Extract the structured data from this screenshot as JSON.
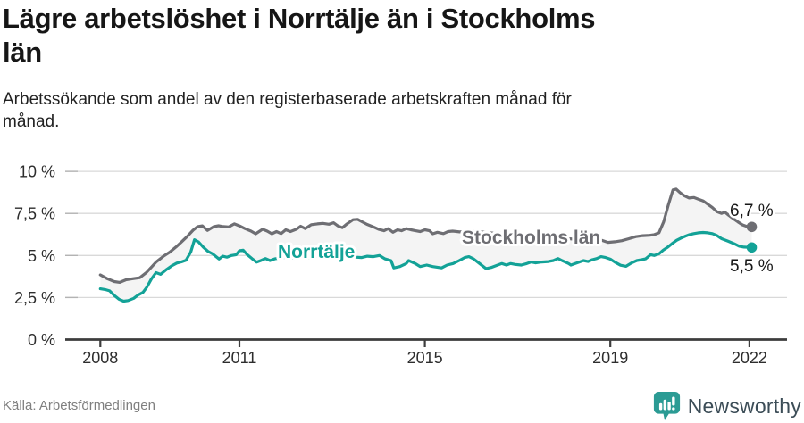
{
  "header": {
    "title_lines": [
      "Lägre arbetslöshet i Norrtälje än i Stockholms",
      "län"
    ],
    "subtitle_lines": [
      "Arbetssökande som andel av den registerbaserade arbetskraften månad för",
      "månad."
    ]
  },
  "footer": {
    "source": "Källa: Arbetsförmedlingen",
    "brand": "Newsworthy",
    "brand_icon": "bar-chart-speech-bubble-icon",
    "brand_icon_color": "#2b9b94",
    "brand_text_color": "#3c4d57"
  },
  "colors": {
    "axis": "#3d3d3d",
    "grid": "#d9d9d9",
    "grid_stub": "#b3b3b3",
    "tick_label": "#2d2d2d",
    "band_fill": "#f4f4f4",
    "end_label": "#161616",
    "halo": "#ffffff"
  },
  "chart_data": {
    "type": "line",
    "title": "Lägre arbetslöshet i Norrtälje än i Stockholms län",
    "subtitle": "Arbetssökande som andel av den registerbaserade arbetskraften månad för månad.",
    "xlabel": "",
    "ylabel": "",
    "grid": true,
    "legend_position": "inline-labels",
    "x_axis": {
      "range": [
        2007.25,
        2022.8
      ],
      "ticks": [
        2008,
        2011,
        2015,
        2019,
        2022
      ],
      "tick_labels": [
        "2008",
        "2011",
        "2015",
        "2019",
        "2022"
      ]
    },
    "y_axis": {
      "range": [
        0,
        10
      ],
      "ticks": [
        0,
        2.5,
        5,
        7.5,
        10
      ],
      "tick_labels": [
        "0 %",
        "2,5 %",
        "5 %",
        "7,5 %",
        "10 %"
      ]
    },
    "band_fill_between_series": true,
    "series": [
      {
        "name": "Stockholms län",
        "color": "#6e6e73",
        "end_value": 6.7,
        "end_label": "6,7 %",
        "points": [
          [
            2008.0,
            3.85
          ],
          [
            2008.15,
            3.62
          ],
          [
            2008.3,
            3.45
          ],
          [
            2008.42,
            3.4
          ],
          [
            2008.55,
            3.55
          ],
          [
            2008.7,
            3.62
          ],
          [
            2008.85,
            3.68
          ],
          [
            2009.0,
            4.0
          ],
          [
            2009.2,
            4.6
          ],
          [
            2009.36,
            4.95
          ],
          [
            2009.5,
            5.2
          ],
          [
            2009.63,
            5.5
          ],
          [
            2009.75,
            5.8
          ],
          [
            2009.87,
            6.12
          ],
          [
            2010.0,
            6.5
          ],
          [
            2010.1,
            6.72
          ],
          [
            2010.2,
            6.76
          ],
          [
            2010.31,
            6.49
          ],
          [
            2010.45,
            6.72
          ],
          [
            2010.55,
            6.77
          ],
          [
            2010.65,
            6.72
          ],
          [
            2010.77,
            6.7
          ],
          [
            2010.89,
            6.88
          ],
          [
            2011.0,
            6.76
          ],
          [
            2011.12,
            6.6
          ],
          [
            2011.25,
            6.45
          ],
          [
            2011.35,
            6.29
          ],
          [
            2011.5,
            6.56
          ],
          [
            2011.6,
            6.45
          ],
          [
            2011.7,
            6.29
          ],
          [
            2011.8,
            6.42
          ],
          [
            2011.9,
            6.3
          ],
          [
            2012.0,
            6.53
          ],
          [
            2012.1,
            6.42
          ],
          [
            2012.23,
            6.56
          ],
          [
            2012.32,
            6.74
          ],
          [
            2012.42,
            6.6
          ],
          [
            2012.55,
            6.83
          ],
          [
            2012.68,
            6.88
          ],
          [
            2012.8,
            6.91
          ],
          [
            2012.93,
            6.86
          ],
          [
            2013.03,
            6.95
          ],
          [
            2013.12,
            6.77
          ],
          [
            2013.22,
            6.65
          ],
          [
            2013.32,
            6.88
          ],
          [
            2013.45,
            7.13
          ],
          [
            2013.55,
            7.15
          ],
          [
            2013.65,
            7.0
          ],
          [
            2013.75,
            6.85
          ],
          [
            2013.89,
            6.7
          ],
          [
            2014.0,
            6.56
          ],
          [
            2014.12,
            6.47
          ],
          [
            2014.21,
            6.6
          ],
          [
            2014.31,
            6.38
          ],
          [
            2014.41,
            6.53
          ],
          [
            2014.5,
            6.47
          ],
          [
            2014.6,
            6.6
          ],
          [
            2014.7,
            6.53
          ],
          [
            2014.8,
            6.47
          ],
          [
            2014.9,
            6.42
          ],
          [
            2015.0,
            6.53
          ],
          [
            2015.1,
            6.47
          ],
          [
            2015.17,
            6.29
          ],
          [
            2015.27,
            6.38
          ],
          [
            2015.4,
            6.3
          ],
          [
            2015.5,
            6.42
          ],
          [
            2015.6,
            6.45
          ],
          [
            2015.75,
            6.4
          ],
          [
            2015.9,
            6.43
          ],
          [
            2016.1,
            6.44
          ],
          [
            2016.3,
            6.38
          ],
          [
            2016.5,
            6.32
          ],
          [
            2016.7,
            6.35
          ],
          [
            2016.9,
            6.25
          ],
          [
            2017.1,
            6.2
          ],
          [
            2017.3,
            6.22
          ],
          [
            2017.5,
            6.12
          ],
          [
            2017.7,
            6.08
          ],
          [
            2017.9,
            6.1
          ],
          [
            2018.1,
            6.0
          ],
          [
            2018.3,
            5.95
          ],
          [
            2018.5,
            5.9
          ],
          [
            2018.65,
            5.95
          ],
          [
            2018.8,
            5.92
          ],
          [
            2018.95,
            5.78
          ],
          [
            2019.1,
            5.82
          ],
          [
            2019.25,
            5.88
          ],
          [
            2019.4,
            6.0
          ],
          [
            2019.55,
            6.12
          ],
          [
            2019.7,
            6.18
          ],
          [
            2019.85,
            6.2
          ],
          [
            2019.95,
            6.24
          ],
          [
            2020.05,
            6.35
          ],
          [
            2020.15,
            7.0
          ],
          [
            2020.25,
            8.0
          ],
          [
            2020.35,
            8.9
          ],
          [
            2020.42,
            8.95
          ],
          [
            2020.5,
            8.75
          ],
          [
            2020.6,
            8.55
          ],
          [
            2020.7,
            8.42
          ],
          [
            2020.8,
            8.45
          ],
          [
            2020.9,
            8.35
          ],
          [
            2021.0,
            8.25
          ],
          [
            2021.1,
            8.05
          ],
          [
            2021.2,
            7.85
          ],
          [
            2021.3,
            7.6
          ],
          [
            2021.4,
            7.5
          ],
          [
            2021.47,
            7.58
          ],
          [
            2021.55,
            7.4
          ],
          [
            2021.65,
            7.2
          ],
          [
            2021.75,
            7.0
          ],
          [
            2021.85,
            6.82
          ],
          [
            2021.95,
            6.72
          ],
          [
            2022.05,
            6.7
          ]
        ]
      },
      {
        "name": "Norrtälje",
        "color": "#13a297",
        "end_value": 5.5,
        "end_label": "5,5 %",
        "points": [
          [
            2008.0,
            3.02
          ],
          [
            2008.1,
            2.98
          ],
          [
            2008.2,
            2.9
          ],
          [
            2008.3,
            2.62
          ],
          [
            2008.4,
            2.4
          ],
          [
            2008.5,
            2.28
          ],
          [
            2008.6,
            2.32
          ],
          [
            2008.72,
            2.45
          ],
          [
            2008.82,
            2.66
          ],
          [
            2008.92,
            2.8
          ],
          [
            2009.0,
            3.1
          ],
          [
            2009.1,
            3.6
          ],
          [
            2009.2,
            3.98
          ],
          [
            2009.3,
            3.88
          ],
          [
            2009.43,
            4.17
          ],
          [
            2009.55,
            4.4
          ],
          [
            2009.65,
            4.55
          ],
          [
            2009.75,
            4.62
          ],
          [
            2009.85,
            4.72
          ],
          [
            2009.95,
            5.2
          ],
          [
            2010.03,
            5.94
          ],
          [
            2010.12,
            5.8
          ],
          [
            2010.22,
            5.5
          ],
          [
            2010.32,
            5.25
          ],
          [
            2010.42,
            5.1
          ],
          [
            2010.5,
            4.92
          ],
          [
            2010.56,
            4.79
          ],
          [
            2010.64,
            4.96
          ],
          [
            2010.73,
            4.9
          ],
          [
            2010.83,
            5.0
          ],
          [
            2010.93,
            5.05
          ],
          [
            2011.0,
            5.28
          ],
          [
            2011.08,
            5.32
          ],
          [
            2011.17,
            5.05
          ],
          [
            2011.27,
            4.82
          ],
          [
            2011.37,
            4.6
          ],
          [
            2011.46,
            4.7
          ],
          [
            2011.56,
            4.82
          ],
          [
            2011.66,
            4.7
          ],
          [
            2011.76,
            4.8
          ],
          [
            2011.9,
            4.86
          ],
          [
            2012.05,
            4.9
          ],
          [
            2012.2,
            4.82
          ],
          [
            2012.35,
            4.92
          ],
          [
            2012.5,
            4.85
          ],
          [
            2012.65,
            4.95
          ],
          [
            2012.8,
            4.88
          ],
          [
            2012.95,
            4.98
          ],
          [
            2013.1,
            4.9
          ],
          [
            2013.25,
            4.85
          ],
          [
            2013.4,
            4.92
          ],
          [
            2013.64,
            4.88
          ],
          [
            2013.76,
            4.96
          ],
          [
            2013.89,
            4.93
          ],
          [
            2014.02,
            5.0
          ],
          [
            2014.14,
            4.8
          ],
          [
            2014.27,
            4.7
          ],
          [
            2014.33,
            4.26
          ],
          [
            2014.46,
            4.34
          ],
          [
            2014.6,
            4.52
          ],
          [
            2014.65,
            4.7
          ],
          [
            2014.79,
            4.52
          ],
          [
            2014.9,
            4.34
          ],
          [
            2015.04,
            4.43
          ],
          [
            2015.17,
            4.34
          ],
          [
            2015.36,
            4.26
          ],
          [
            2015.48,
            4.43
          ],
          [
            2015.61,
            4.52
          ],
          [
            2015.74,
            4.7
          ],
          [
            2015.86,
            4.88
          ],
          [
            2015.95,
            4.93
          ],
          [
            2016.05,
            4.8
          ],
          [
            2016.18,
            4.52
          ],
          [
            2016.32,
            4.22
          ],
          [
            2016.43,
            4.29
          ],
          [
            2016.57,
            4.43
          ],
          [
            2016.66,
            4.52
          ],
          [
            2016.76,
            4.43
          ],
          [
            2016.85,
            4.52
          ],
          [
            2016.95,
            4.47
          ],
          [
            2017.08,
            4.43
          ],
          [
            2017.2,
            4.52
          ],
          [
            2017.29,
            4.61
          ],
          [
            2017.39,
            4.56
          ],
          [
            2017.52,
            4.61
          ],
          [
            2017.66,
            4.64
          ],
          [
            2017.77,
            4.7
          ],
          [
            2017.87,
            4.82
          ],
          [
            2017.96,
            4.7
          ],
          [
            2018.1,
            4.52
          ],
          [
            2018.15,
            4.43
          ],
          [
            2018.29,
            4.57
          ],
          [
            2018.42,
            4.7
          ],
          [
            2018.52,
            4.64
          ],
          [
            2018.61,
            4.75
          ],
          [
            2018.71,
            4.82
          ],
          [
            2018.8,
            4.93
          ],
          [
            2018.9,
            4.88
          ],
          [
            2019.0,
            4.78
          ],
          [
            2019.1,
            4.6
          ],
          [
            2019.22,
            4.42
          ],
          [
            2019.34,
            4.36
          ],
          [
            2019.45,
            4.55
          ],
          [
            2019.57,
            4.7
          ],
          [
            2019.68,
            4.75
          ],
          [
            2019.76,
            4.8
          ],
          [
            2019.87,
            5.05
          ],
          [
            2019.95,
            5.0
          ],
          [
            2020.05,
            5.1
          ],
          [
            2020.14,
            5.32
          ],
          [
            2020.24,
            5.5
          ],
          [
            2020.33,
            5.7
          ],
          [
            2020.43,
            5.9
          ],
          [
            2020.52,
            6.03
          ],
          [
            2020.62,
            6.15
          ],
          [
            2020.71,
            6.24
          ],
          [
            2020.8,
            6.3
          ],
          [
            2020.9,
            6.35
          ],
          [
            2021.0,
            6.37
          ],
          [
            2021.1,
            6.35
          ],
          [
            2021.2,
            6.3
          ],
          [
            2021.29,
            6.2
          ],
          [
            2021.4,
            6.0
          ],
          [
            2021.54,
            5.85
          ],
          [
            2021.67,
            5.7
          ],
          [
            2021.78,
            5.55
          ],
          [
            2021.88,
            5.5
          ],
          [
            2022.05,
            5.48
          ]
        ]
      }
    ]
  }
}
